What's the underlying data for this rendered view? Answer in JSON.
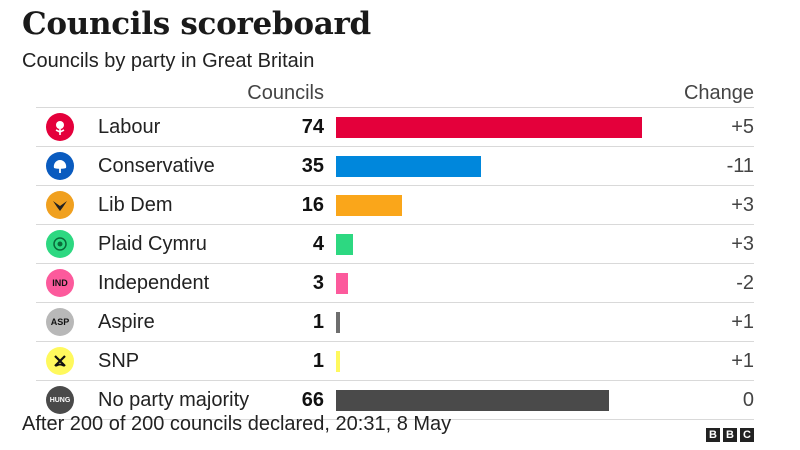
{
  "header": {
    "title": "Councils scoreboard",
    "subtitle": "Councils by party in Great Britain",
    "col_councils": "Councils",
    "col_change": "Change"
  },
  "footnote": "After 200 of 200 councils declared, 20:31, 8 May",
  "brand": {
    "letters": [
      "B",
      "B",
      "C"
    ]
  },
  "chart_data": {
    "type": "bar",
    "orientation": "horizontal",
    "title": "Councils scoreboard",
    "subtitle": "Councils by party in Great Britain",
    "xlim": [
      0,
      74
    ],
    "rows": [
      {
        "party": "Labour",
        "councils": 74,
        "change": "+5",
        "color": "#e4003b",
        "logo_icon": "labour-rose-icon",
        "logo_bg": "#e4003b",
        "logo_text": ""
      },
      {
        "party": "Conservative",
        "councils": 35,
        "change": "-11",
        "color": "#0087dc",
        "logo_icon": "conservative-tree-icon",
        "logo_bg": "#0a5bbf",
        "logo_text": ""
      },
      {
        "party": "Lib Dem",
        "councils": 16,
        "change": "+3",
        "color": "#faa61a",
        "logo_icon": "libdem-bird-icon",
        "logo_bg": "#f0a01f",
        "logo_text": ""
      },
      {
        "party": "Plaid Cymru",
        "councils": 4,
        "change": "+3",
        "color": "#2dd881",
        "logo_icon": "plaid-poppy-icon",
        "logo_bg": "#2dd881",
        "logo_text": ""
      },
      {
        "party": "Independent",
        "councils": 3,
        "change": "-2",
        "color": "#fc5a9c",
        "logo_icon": "ind-badge-icon",
        "logo_bg": "#fc5a9c",
        "logo_text": "IND"
      },
      {
        "party": "Aspire",
        "councils": 1,
        "change": "+1",
        "color": "#6e6e6e",
        "logo_icon": "asp-badge-icon",
        "logo_bg": "#b8b8b8",
        "logo_text": "ASP"
      },
      {
        "party": "SNP",
        "councils": 1,
        "change": "+1",
        "color": "#fff95d",
        "logo_icon": "snp-saltire-icon",
        "logo_bg": "#fff95d",
        "logo_text": ""
      },
      {
        "party": "No party majority",
        "councils": 66,
        "change": "0",
        "color": "#4a4a4a",
        "logo_icon": "hung-badge-icon",
        "logo_bg": "#4a4a4a",
        "logo_text": "HUNG"
      }
    ]
  }
}
